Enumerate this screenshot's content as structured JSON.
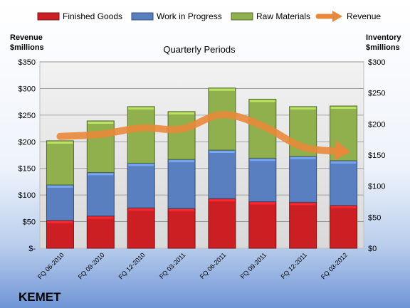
{
  "chart_data": {
    "type": "bar",
    "subtitle": "Quarterly Periods",
    "company": "KEMET",
    "left_axis_label": [
      "Revenue",
      "$millions"
    ],
    "right_axis_label": [
      "Inventory",
      "$millions"
    ],
    "categories": [
      "FQ 06-2010",
      "FQ 09-2010",
      "FQ 12-2010",
      "FQ 03-2011",
      "FQ 06-2011",
      "FQ 09-2011",
      "FQ 12-2011",
      "FQ 03-2012"
    ],
    "left_ylim": [
      0,
      350
    ],
    "left_ticks": [
      "$-",
      "$50",
      "$100",
      "$150",
      "$200",
      "$250",
      "$300",
      "$350"
    ],
    "right_ylim": [
      0,
      300
    ],
    "right_ticks": [
      "$0",
      "$50",
      "$100",
      "$150",
      "$200",
      "$250",
      "$300"
    ],
    "stacked_axis": "right",
    "series": [
      {
        "name": "Finished Goods",
        "color": "#cc1f24",
        "values": [
          45,
          52,
          65,
          64,
          80,
          75,
          74,
          69
        ]
      },
      {
        "name": "Work in Progress",
        "color": "#5a7fc0",
        "values": [
          57,
          70,
          72,
          79,
          78,
          70,
          74,
          72
        ]
      },
      {
        "name": "Raw Materials",
        "color": "#8fb04c",
        "values": [
          71,
          83,
          91,
          77,
          100,
          95,
          80,
          88
        ]
      }
    ],
    "line_series": {
      "name": "Revenue",
      "color": "#e8883a",
      "axis": "left",
      "values": [
        210,
        214,
        226,
        224,
        251,
        230,
        190,
        182
      ]
    },
    "grid": true,
    "legend_position": "top"
  }
}
